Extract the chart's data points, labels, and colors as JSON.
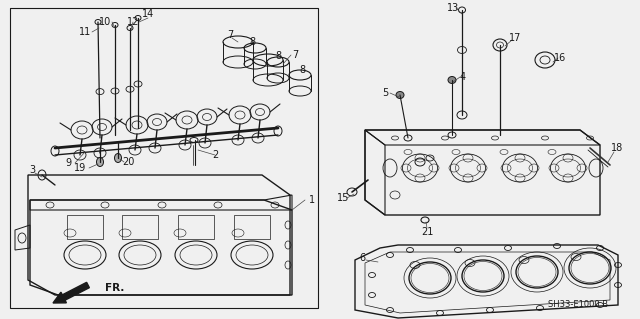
{
  "fig_width": 6.4,
  "fig_height": 3.19,
  "dpi": 100,
  "background_color": "#f0f0f0",
  "line_color": "#1a1a1a",
  "part_code": "SH33-E1000 B",
  "font_size_label": 7.0,
  "font_size_code": 6.0
}
